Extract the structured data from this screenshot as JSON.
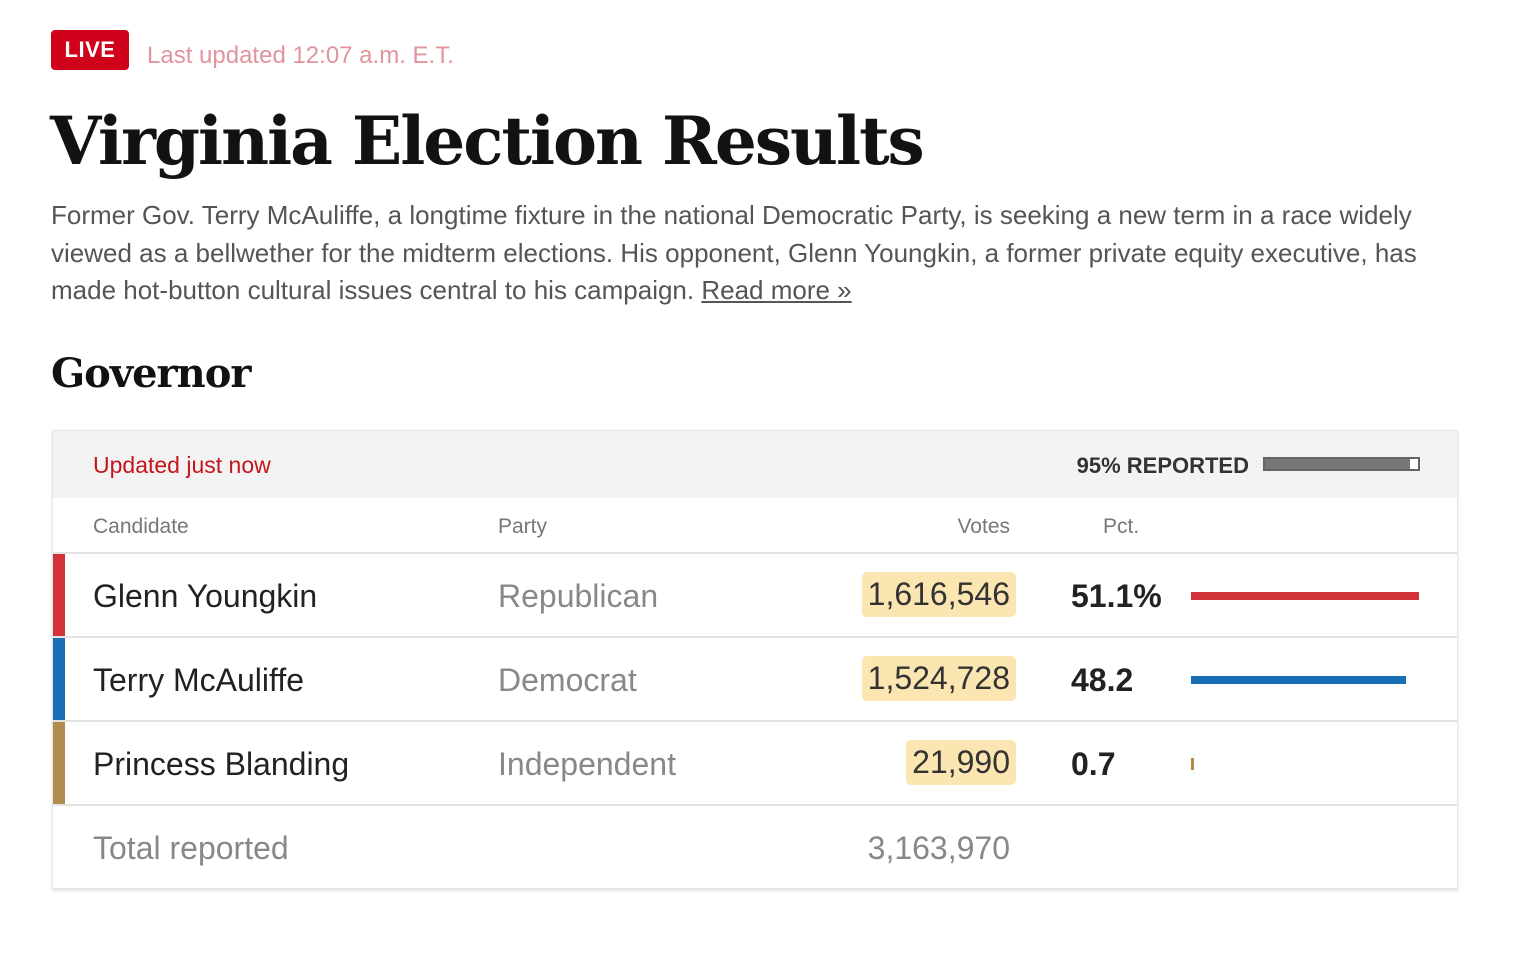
{
  "header": {
    "live_label": "LIVE",
    "last_updated": "Last updated 12:07 a.m. E.T.",
    "title": "Virginia Election Results",
    "description": "Former Gov. Terry McAuliffe, a longtime fixture in the national Democratic Party, is seeking a new term in a race widely viewed as a bellwether for the midterm elections. His opponent, Glenn Youngkin, a former private equity executive, has made hot-button cultural issues central to his campaign. ",
    "read_more": "Read more »"
  },
  "race": {
    "title": "Governor",
    "updated": "Updated just now",
    "reported_label": "95% REPORTED",
    "reported_pct": 95,
    "columns": {
      "candidate": "Candidate",
      "party": "Party",
      "votes": "Votes",
      "pct": "Pct."
    },
    "candidates": [
      {
        "name": "Glenn Youngkin",
        "party": "Republican",
        "votes": "1,616,546",
        "pct_label": "51.1%",
        "pct": 51.1,
        "color": "#d0343a"
      },
      {
        "name": "Terry McAuliffe",
        "party": "Democrat",
        "votes": "1,524,728",
        "pct_label": "48.2",
        "pct": 48.2,
        "color": "#1a6eb5"
      },
      {
        "name": "Princess Blanding",
        "party": "Independent",
        "votes": "21,990",
        "pct_label": "0.7",
        "pct": 0.7,
        "color": "#b08d4f"
      }
    ],
    "total_label": "Total reported",
    "total_votes": "3,163,970"
  }
}
